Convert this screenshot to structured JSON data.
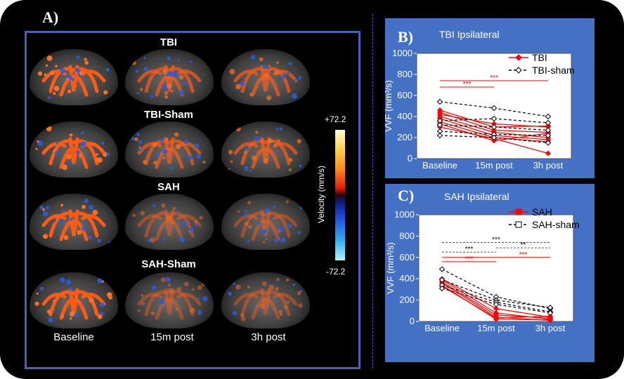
{
  "panel_labels": {
    "a": "A)",
    "b": "B)",
    "c": "C)"
  },
  "panel_a": {
    "row_titles": [
      "TBI",
      "TBI-Sham",
      "SAH",
      "SAH-Sham"
    ],
    "column_labels": [
      "Baseline",
      "15m post",
      "3h post"
    ],
    "colorbar": {
      "max_label": "+72.2",
      "min_label": "-72.2",
      "axis_label": "Velocity (mm/s)"
    }
  },
  "colors": {
    "frame": "#000000",
    "panel_bg": "#4571c4",
    "border": "#3f63b5",
    "red": "#ff0000",
    "black": "#000000"
  },
  "chart_data": [
    {
      "type": "line",
      "title": "TBI Ipsilateral",
      "ylabel": "VVF (mm³/s)",
      "xlabel": "",
      "categories": [
        "Baseline",
        "15m post",
        "3h post"
      ],
      "ylim": [
        0,
        1000
      ],
      "yticks": [
        0,
        200,
        400,
        600,
        800,
        1000
      ],
      "legend": [
        "TBI",
        "TBI-sham"
      ],
      "significance": [
        "***",
        "***"
      ],
      "series": [
        {
          "group": "TBI",
          "values": [
            460,
            300,
            310
          ]
        },
        {
          "group": "TBI",
          "values": [
            440,
            270,
            250
          ]
        },
        {
          "group": "TBI",
          "values": [
            420,
            330,
            300
          ]
        },
        {
          "group": "TBI",
          "values": [
            400,
            250,
            200
          ]
        },
        {
          "group": "TBI",
          "values": [
            380,
            220,
            180
          ]
        },
        {
          "group": "TBI",
          "values": [
            350,
            200,
            160
          ]
        },
        {
          "group": "TBI",
          "values": [
            330,
            170,
            240
          ]
        },
        {
          "group": "TBI",
          "values": [
            300,
            190,
            50
          ]
        },
        {
          "group": "TBI-sham",
          "values": [
            540,
            480,
            400
          ]
        },
        {
          "group": "TBI-sham",
          "values": [
            360,
            380,
            340
          ]
        },
        {
          "group": "TBI-sham",
          "values": [
            320,
            300,
            270
          ]
        },
        {
          "group": "TBI-sham",
          "values": [
            260,
            230,
            220
          ]
        },
        {
          "group": "TBI-sham",
          "values": [
            220,
            200,
            150
          ]
        }
      ]
    },
    {
      "type": "line",
      "title": "SAH Ipsilateral",
      "ylabel": "VVF (mm³/s)",
      "xlabel": "",
      "categories": [
        "Baseline",
        "15m post",
        "3h post"
      ],
      "ylim": [
        0,
        1000
      ],
      "yticks": [
        0,
        200,
        400,
        600,
        800,
        1000
      ],
      "legend": [
        "SAH",
        "SAH-sham"
      ],
      "significance": [
        "***",
        "***",
        "***",
        "**"
      ],
      "series": [
        {
          "group": "SAH",
          "values": [
            400,
            120,
            40
          ]
        },
        {
          "group": "SAH",
          "values": [
            390,
            80,
            20
          ]
        },
        {
          "group": "SAH",
          "values": [
            370,
            60,
            30
          ]
        },
        {
          "group": "SAH",
          "values": [
            360,
            40,
            10
          ]
        },
        {
          "group": "SAH",
          "values": [
            340,
            20,
            15
          ]
        },
        {
          "group": "SAH",
          "values": [
            330,
            30,
            50
          ]
        },
        {
          "group": "SAH-sham",
          "values": [
            490,
            230,
            120
          ]
        },
        {
          "group": "SAH-sham",
          "values": [
            390,
            200,
            130
          ]
        },
        {
          "group": "SAH-sham",
          "values": [
            340,
            180,
            90
          ]
        },
        {
          "group": "SAH-sham",
          "values": [
            310,
            160,
            80
          ]
        }
      ]
    }
  ]
}
